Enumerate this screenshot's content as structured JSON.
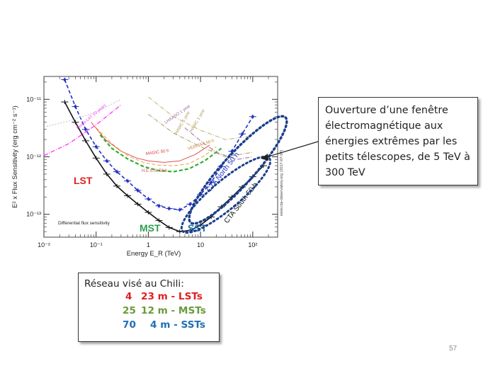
{
  "callout_text": "Ouverture d’une fenêtre électromagnétique aux énergies extrêmes par les petits télescopes, de 5 TeV à 300 TeV",
  "network": {
    "title": "Réseau visé au Chili:",
    "rows": [
      {
        "count": "4",
        "spec": "23 m - LSTs",
        "color": "#e02020"
      },
      {
        "count": "25",
        "spec": "12 m - MSTs",
        "color": "#6a9a3a"
      },
      {
        "count": "70",
        "spec": "4 m - SSTs",
        "color": "#1f6fb5"
      }
    ]
  },
  "page_number": "57",
  "chart_data": {
    "type": "line",
    "xscale": "log",
    "yscale": "log",
    "xlim": [
      0.01,
      300
    ],
    "ylim": [
      4e-14,
      2.5e-11
    ],
    "xlabel": "Energy E_R (TeV)",
    "ylabel": "E² x Flux Sensitivity (erg cm⁻² s⁻¹)",
    "x_ticks": [
      {
        "v": 0.01,
        "label": "10⁻²"
      },
      {
        "v": 0.1,
        "label": "10⁻¹"
      },
      {
        "v": 1,
        "label": "1"
      },
      {
        "v": 10,
        "label": "10"
      },
      {
        "v": 100,
        "label": "10²"
      }
    ],
    "y_ticks": [
      {
        "v": 1e-13,
        "label": "10⁻¹³"
      },
      {
        "v": 1e-12,
        "label": "10⁻¹²"
      },
      {
        "v": 1e-11,
        "label": "10⁻¹¹"
      }
    ],
    "inner_note": "Differential flux sensitivity",
    "credit": "www.cta-observatory.org (2017-07-07)",
    "series": [
      {
        "name": "CTA South 50 h",
        "color": "#111111",
        "style": "solid",
        "width": 1.6,
        "x": [
          0.025,
          0.04,
          0.063,
          0.1,
          0.16,
          0.25,
          0.4,
          0.63,
          1,
          1.6,
          2.5,
          4,
          6.3,
          10,
          16,
          25,
          40,
          63,
          100,
          160
        ],
        "y": [
          9e-12,
          4e-12,
          1.9e-12,
          9.5e-13,
          5e-13,
          3.1e-13,
          2.1e-13,
          1.5e-13,
          1.08e-13,
          7.8e-14,
          5.9e-14,
          5e-14,
          5.2e-14,
          6.5e-14,
          9e-14,
          1.35e-13,
          2e-13,
          3e-13,
          4.5e-13,
          7e-13
        ]
      },
      {
        "name": "CTA North 50 h",
        "color": "#2030c0",
        "style": "dashed",
        "width": 1.6,
        "x": [
          0.025,
          0.04,
          0.063,
          0.1,
          0.16,
          0.25,
          0.4,
          0.63,
          1,
          1.6,
          2.5,
          4,
          6.3,
          10,
          16,
          25,
          40,
          63,
          100
        ],
        "y": [
          2.2e-11,
          7.5e-12,
          3e-12,
          1.5e-12,
          8.5e-13,
          5.5e-13,
          3.8e-13,
          2.6e-13,
          1.85e-13,
          1.4e-13,
          1.26e-13,
          1.2e-13,
          1.5e-13,
          2.2e-13,
          3.6e-13,
          6.8e-13,
          1.25e-12,
          2.5e-12,
          5e-12
        ]
      },
      {
        "name": "MAGIC 50 h",
        "color": "#e05050",
        "style": "solid",
        "width": 1,
        "x": [
          0.08,
          0.15,
          0.3,
          0.6,
          1,
          2,
          4,
          8,
          15
        ],
        "y": [
          4e-12,
          2e-12,
          1.25e-12,
          9.5e-13,
          8.5e-13,
          8e-13,
          8.5e-13,
          1.1e-12,
          1.6e-12
        ]
      },
      {
        "name": "VERITAS 50 h",
        "color": "#e8a040",
        "style": "dashed",
        "width": 1,
        "x": [
          0.1,
          0.2,
          0.4,
          0.8,
          1.5,
          3,
          6,
          12,
          20
        ],
        "y": [
          3.2e-12,
          1.7e-12,
          1.05e-12,
          8e-13,
          7.2e-13,
          7e-13,
          7.6e-13,
          1.05e-12,
          1.5e-12
        ]
      },
      {
        "name": "H.E.S.S. 50 h",
        "color": "#30b030",
        "style": "dashed",
        "width": 2.2,
        "x": [
          0.12,
          0.2,
          0.4,
          0.8,
          1.5,
          3,
          6,
          12,
          25
        ],
        "y": [
          2.4e-12,
          1.4e-12,
          9.2e-13,
          6.8e-13,
          5.8e-13,
          5.5e-13,
          6.2e-13,
          8.5e-13,
          1.4e-12
        ]
      },
      {
        "name": "HAWC 1 year",
        "color": "#c0b070",
        "style": "dashdot",
        "width": 1,
        "x": [
          1,
          3,
          10,
          30,
          100
        ],
        "y": [
          1.1e-11,
          5e-12,
          2.9e-12,
          2e-12,
          2.3e-12
        ]
      },
      {
        "name": "HAWC 5 year",
        "color": "#a8a060",
        "style": "dashdot",
        "width": 1,
        "x": [
          1,
          3,
          10,
          30,
          100
        ],
        "y": [
          5.5e-12,
          2.6e-12,
          1.5e-12,
          1e-12,
          1.2e-12
        ]
      },
      {
        "name": "LHAASO 1 year",
        "color": "#9a6a9a",
        "style": "dashdot",
        "width": 1,
        "x": [
          5,
          10,
          20,
          50,
          100
        ],
        "y": [
          3.2e-12,
          1.9e-12,
          1.2e-12,
          9e-13,
          1e-12
        ]
      },
      {
        "name": "Fermi-LAT 10 years",
        "color": "#ff40ff",
        "style": "dashdot",
        "width": 1.4,
        "x": [
          0.01,
          0.03,
          0.1,
          0.3
        ],
        "y": [
          1.05e-12,
          1.7e-12,
          3.6e-12,
          8e-12
        ]
      },
      {
        "name": "Fermi-LAT 10 years (high lat)",
        "color": "#c0c0c0",
        "style": "dotted",
        "width": 1,
        "x": [
          0.01,
          0.03,
          0.1,
          0.3
        ],
        "y": [
          3.3e-12,
          4.2e-12,
          6e-12,
          1e-11
        ]
      }
    ],
    "annotations": [
      {
        "text": "LST",
        "color": "#e02020",
        "size": 14
      },
      {
        "text": "MST",
        "color": "#30a050",
        "size": 14
      },
      {
        "text": "SST",
        "color": "#1f6fb5",
        "size": 14
      },
      {
        "text": "MAGIC 50 h",
        "color": "#d04040",
        "size": 6
      },
      {
        "text": "VERITAS 50 h",
        "color": "#c08030",
        "size": 6
      },
      {
        "text": "H.E.S.S. 50 h",
        "color": "#d05050",
        "size": 6
      },
      {
        "text": "HAWC 1 year",
        "color": "#a8a060",
        "size": 6
      },
      {
        "text": "HAWC 5 year",
        "color": "#a8a060",
        "size": 6
      },
      {
        "text": "LHAASO 1 year",
        "color": "#9a6a9a",
        "size": 6
      },
      {
        "text": "Fermi-LAT 10 years",
        "color": "#ff40ff",
        "size": 6
      },
      {
        "text": "CTA North 50 h",
        "color": "#2030c0",
        "size": 10
      },
      {
        "text": "CTA South 50 h",
        "color": "#111111",
        "size": 10
      }
    ]
  }
}
